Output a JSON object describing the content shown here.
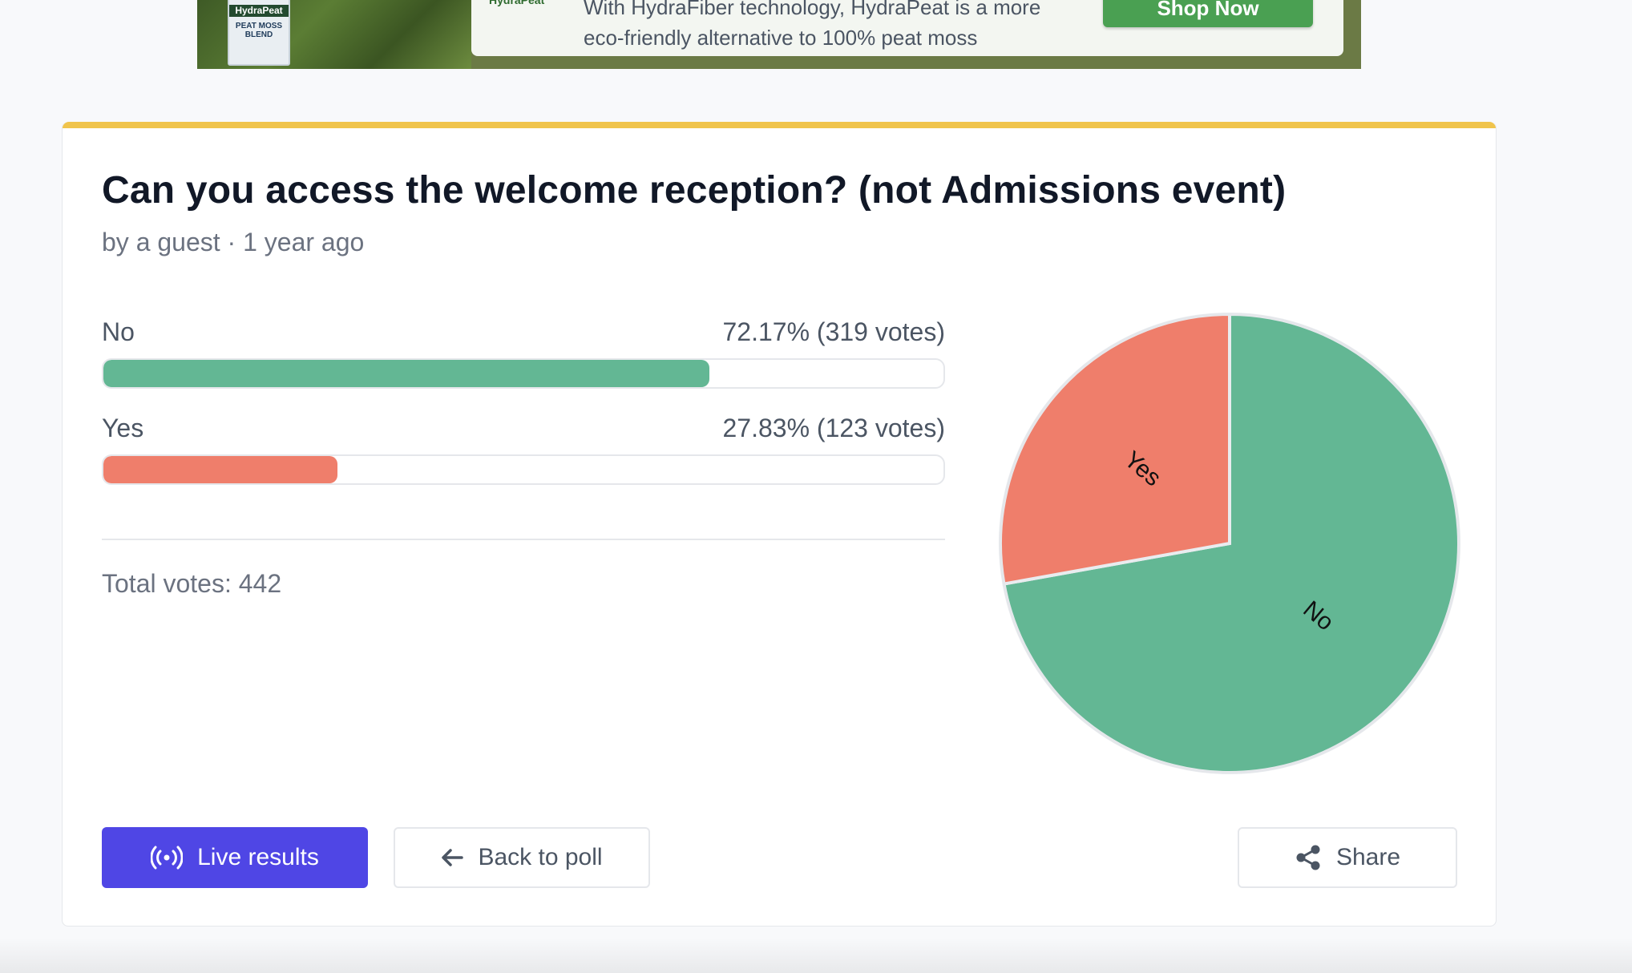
{
  "ad": {
    "brand": "HydraPeat",
    "bag_brand": "HydraPeat",
    "bag_lines": [
      "PEAT MOSS",
      "BLEND"
    ],
    "text_line1": "With HydraFiber technology, HydraPeat is a more",
    "text_line2": "eco-friendly alternative to 100% peat moss",
    "cta": "Shop Now"
  },
  "poll": {
    "title": "Can you access the welcome reception? (not Admissions event)",
    "meta": "by a guest · 1 year ago",
    "options": [
      {
        "label": "No",
        "result": "72.17% (319 votes)",
        "percent": 72.17,
        "color": "#63b794"
      },
      {
        "label": "Yes",
        "result": "27.83% (123 votes)",
        "percent": 27.83,
        "color": "#ef7e6b"
      }
    ],
    "total": "Total votes: 442"
  },
  "actions": {
    "live_label": "Live results",
    "back_label": "Back to poll",
    "share_label": "Share"
  },
  "icons": {
    "live": "broadcast-icon",
    "back": "arrow-left-icon",
    "share": "share-icon"
  },
  "chart_data": {
    "type": "pie",
    "categories": [
      "No",
      "Yes"
    ],
    "values": [
      72.17,
      27.83
    ],
    "colors": [
      "#63b794",
      "#ef7e6b"
    ]
  }
}
